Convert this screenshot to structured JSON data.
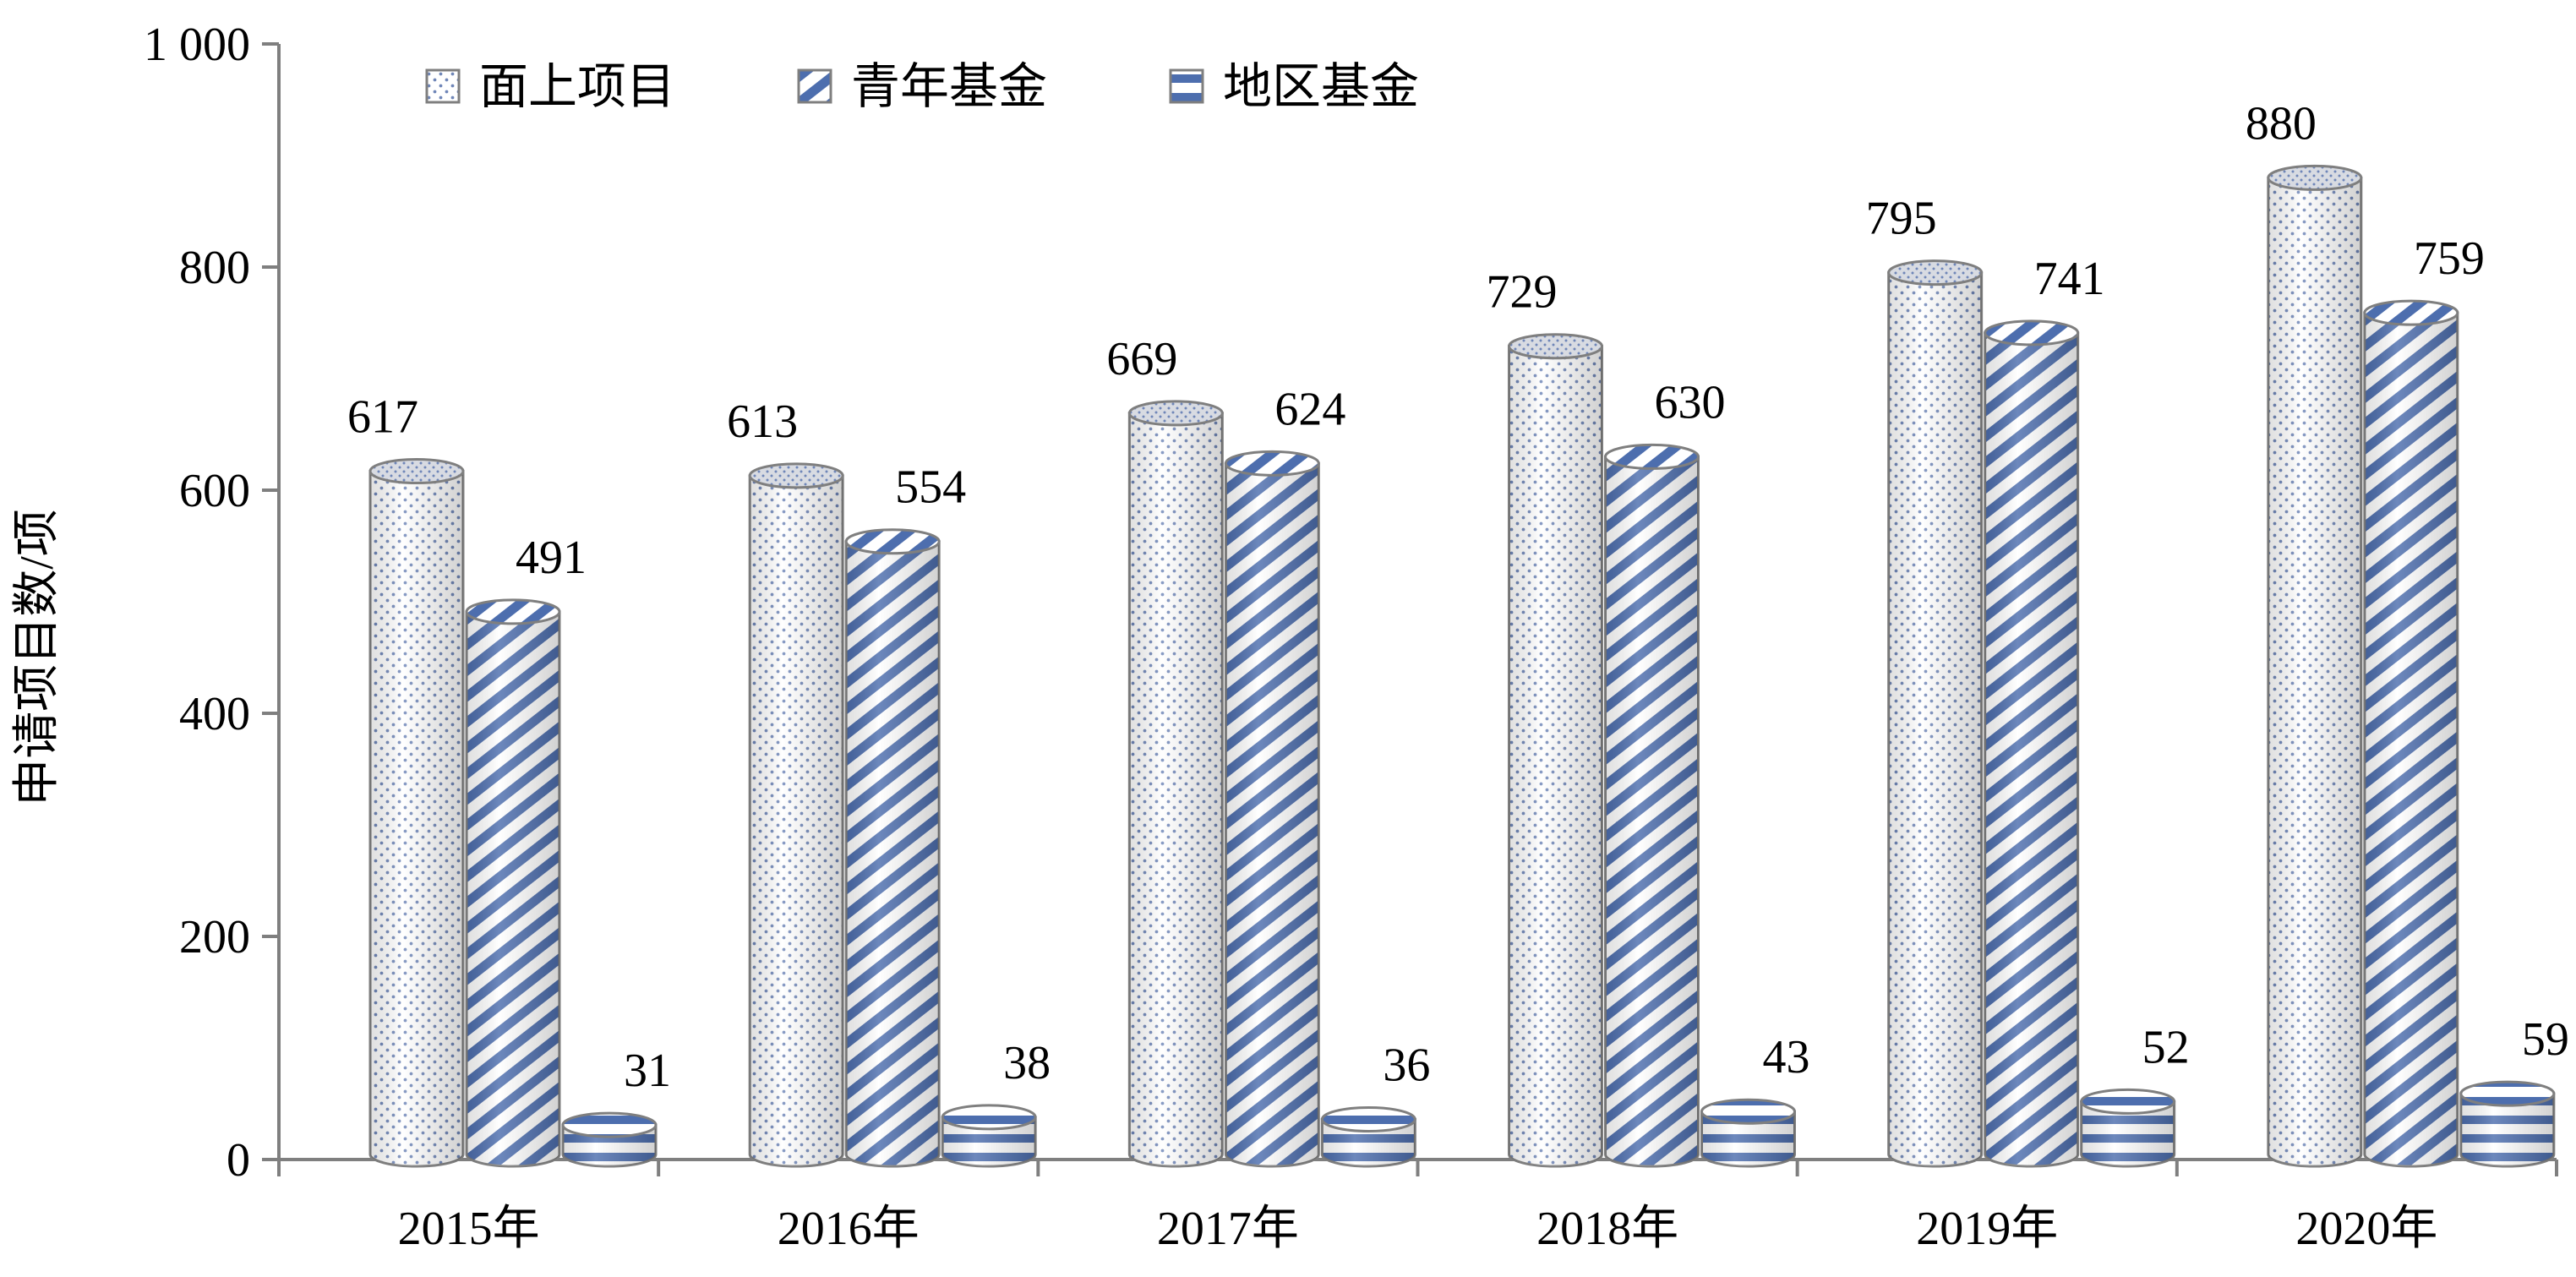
{
  "chart_data": {
    "type": "bar",
    "title": "",
    "xlabel": "",
    "ylabel": "申请项目数/项",
    "ylim": [
      0,
      1000
    ],
    "yticks": [
      0,
      200,
      400,
      600,
      800,
      1000
    ],
    "ytick_labels": [
      "0",
      "200",
      "400",
      "600",
      "800",
      "1 000"
    ],
    "categories": [
      "2015年",
      "2016年",
      "2017年",
      "2018年",
      "2019年",
      "2020年"
    ],
    "series": [
      {
        "name": "面上项目",
        "values": [
          617,
          613,
          669,
          729,
          795,
          880
        ],
        "pattern": "dots"
      },
      {
        "name": "青年基金",
        "values": [
          491,
          554,
          624,
          630,
          741,
          759
        ],
        "pattern": "diagonal-stripes"
      },
      {
        "name": "地区基金",
        "values": [
          31,
          38,
          36,
          43,
          52,
          59
        ],
        "pattern": "horizontal-stripes"
      }
    ],
    "legend_position": "top-left",
    "grid": false,
    "bar_style": "3d-cylinder",
    "colors": {
      "dots": "#6f86b8",
      "stripe": "#4d6eae",
      "outline": "#7f7f7f",
      "axis": "#7f7f7f"
    }
  }
}
